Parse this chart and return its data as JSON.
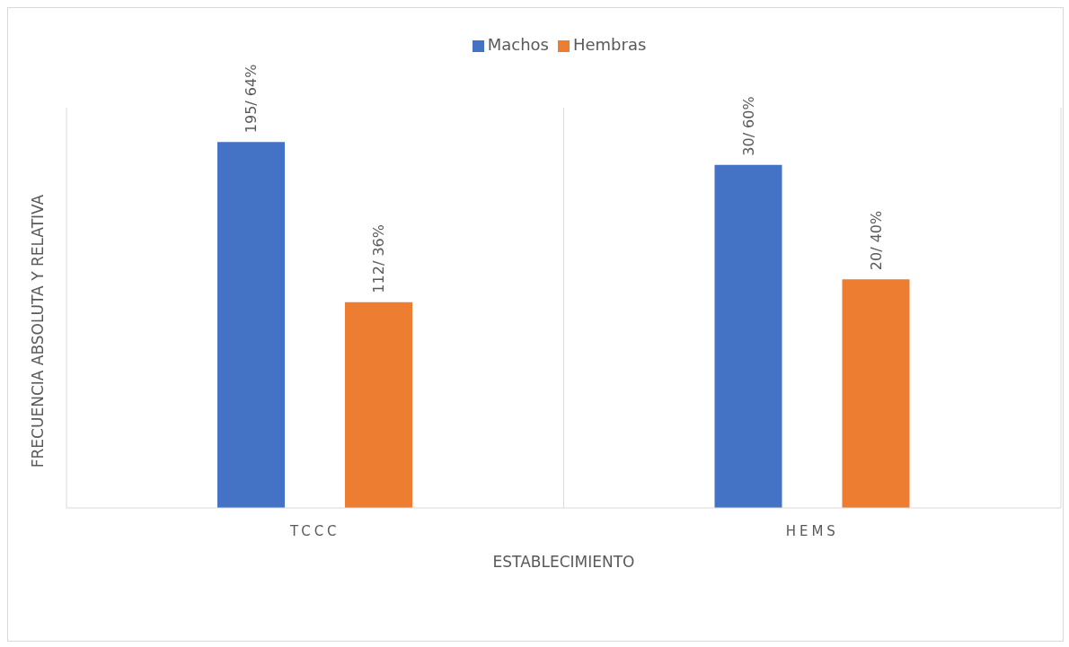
{
  "chart_data": {
    "type": "bar",
    "xlabel": "ESTABLECIMIENTO",
    "ylabel": "FRECUENCIA ABSOLUTA Y RELATIVA",
    "categories": [
      "TCCC",
      "HEMS"
    ],
    "series": [
      {
        "name": "Machos",
        "color": "#4472c4",
        "values": [
          64,
          60
        ],
        "value_labels": [
          "195/ 64%",
          "30/ 60%"
        ]
      },
      {
        "name": "Hembras",
        "color": "#ed7d31",
        "values": [
          36,
          40
        ],
        "value_labels": [
          "112/ 36%",
          "20/ 40%"
        ]
      }
    ],
    "ylim": [
      0,
      70
    ],
    "grid": "x",
    "legend": "top",
    "tick_labels": "x"
  }
}
